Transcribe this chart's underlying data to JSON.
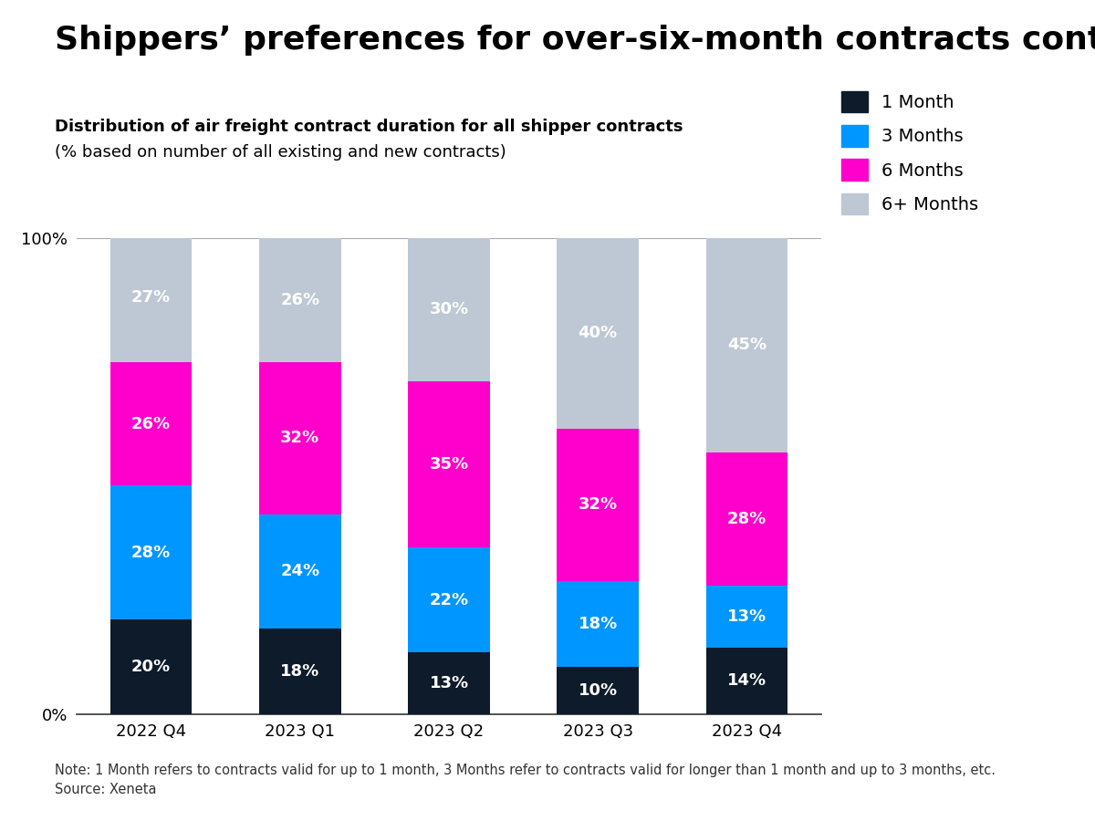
{
  "title": "Shippers’ preferences for over-six-month contracts continued to grow",
  "subtitle_bold": "Distribution of air freight contract duration for all shipper contracts",
  "subtitle_regular": "(% based on number of all existing and new contracts)",
  "categories": [
    "2022 Q4",
    "2023 Q1",
    "2023 Q2",
    "2023 Q3",
    "2023 Q4"
  ],
  "series": {
    "1 Month": [
      20,
      18,
      13,
      10,
      14
    ],
    "3 Months": [
      28,
      24,
      22,
      18,
      13
    ],
    "6 Months": [
      26,
      32,
      35,
      32,
      28
    ],
    "6+ Months": [
      27,
      26,
      30,
      40,
      45
    ]
  },
  "colors": {
    "1 Month": "#0d1b2a",
    "3 Months": "#0096ff",
    "6 Months": "#ff00cc",
    "6+ Months": "#bec8d4"
  },
  "note": "Note: 1 Month refers to contracts valid for up to 1 month, 3 Months refer to contracts valid for longer than 1 month and up to 3 months, etc.",
  "source": "Source: Xeneta",
  "background_color": "#ffffff",
  "bar_width": 0.55,
  "ylim": [
    0,
    100
  ],
  "title_fontsize": 26,
  "subtitle_fontsize": 13,
  "label_fontsize": 13,
  "legend_fontsize": 14,
  "note_fontsize": 10.5,
  "axis_label_fontsize": 13
}
